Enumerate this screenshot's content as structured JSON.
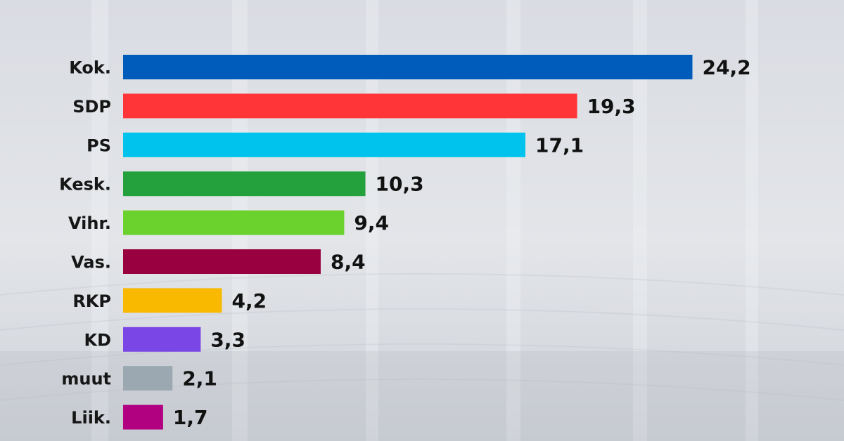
{
  "chart_data": {
    "type": "bar",
    "orientation": "horizontal",
    "categories": [
      "Kok.",
      "SDP",
      "PS",
      "Kesk.",
      "Vihr.",
      "Vas.",
      "RKP",
      "KD",
      "muut",
      "Liik."
    ],
    "values": [
      24.2,
      19.3,
      17.1,
      10.3,
      9.4,
      8.4,
      4.2,
      3.3,
      2.1,
      1.7
    ],
    "value_labels": [
      "24,2",
      "19,3",
      "17,1",
      "10,3",
      "9,4",
      "8,4",
      "4,2",
      "3,3",
      "2,1",
      "1,7"
    ],
    "colors": [
      "#005cbb",
      "#ff3538",
      "#00c3ed",
      "#24a13d",
      "#6bd22d",
      "#990040",
      "#f9b900",
      "#7a47e6",
      "#9ba8b1",
      "#b10080"
    ],
    "title": "",
    "xlabel": "",
    "ylabel": "",
    "grid": false,
    "legend": "none"
  }
}
